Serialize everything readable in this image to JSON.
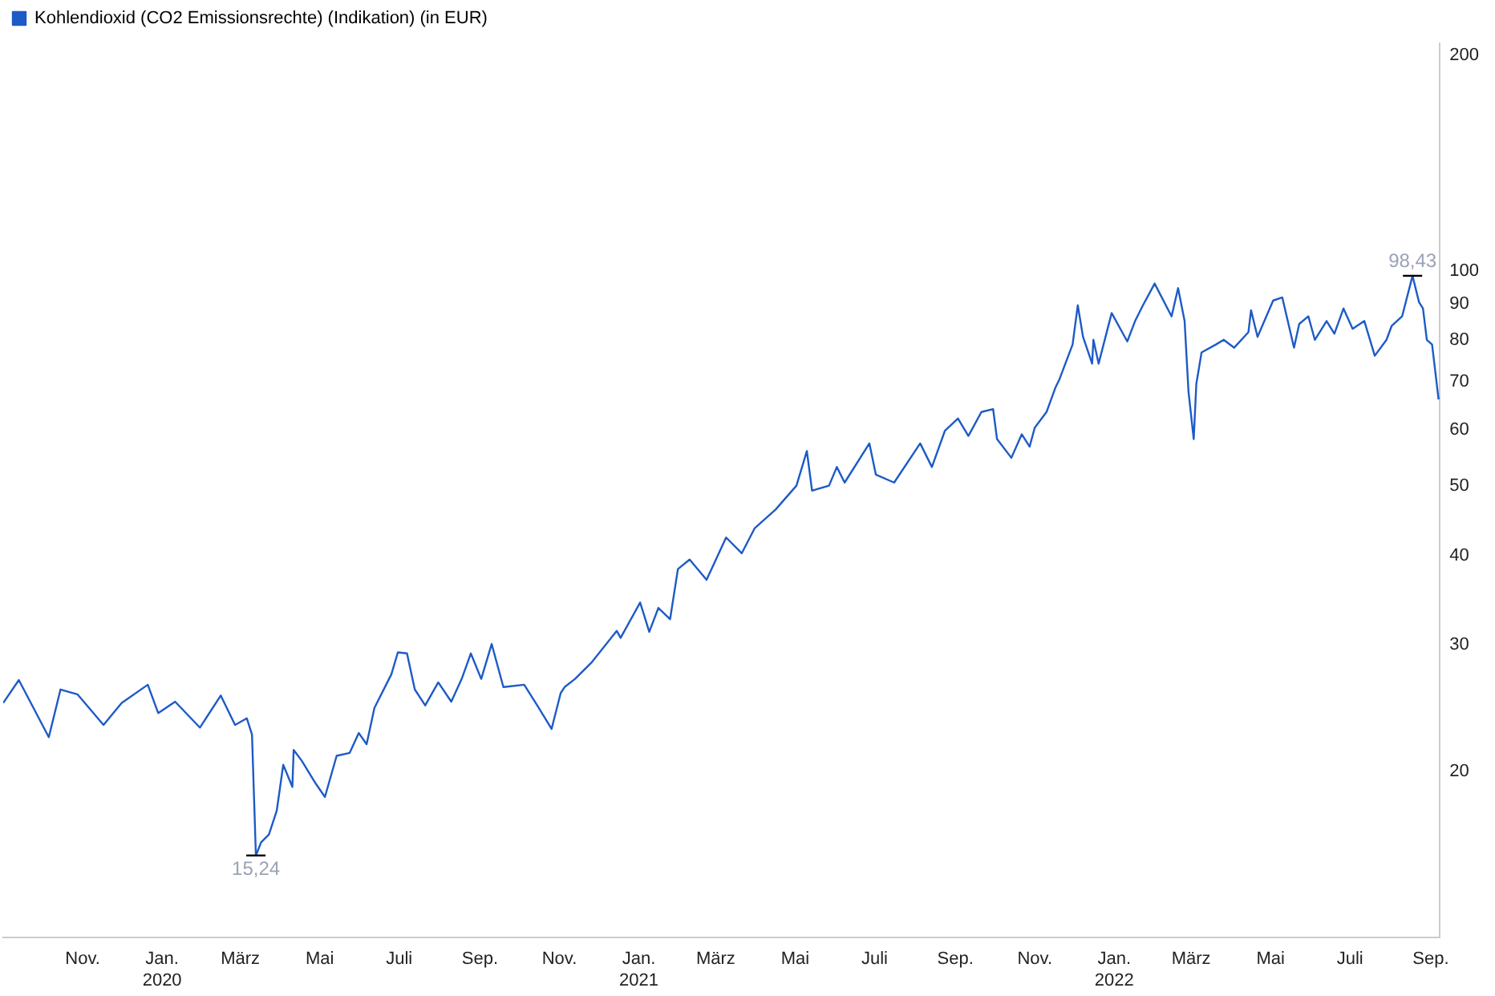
{
  "chart_data": {
    "type": "line",
    "log": "y",
    "legend": "top left",
    "grid": false,
    "marker": "none",
    "line_style": "solid",
    "xlim": [
      "2019-09-01",
      "2022-09-08"
    ],
    "ylim": [
      11.7,
      208
    ],
    "yticks": [
      20,
      30,
      40,
      50,
      60,
      70,
      80,
      90,
      100,
      200
    ],
    "xticks": [
      {
        "value": "2019-11",
        "label": "Nov."
      },
      {
        "value": "2020-01",
        "label": "Jan. 2020"
      },
      {
        "value": "2020-03",
        "label": "März"
      },
      {
        "value": "2020-05",
        "label": "Mai"
      },
      {
        "value": "2020-07",
        "label": "Juli"
      },
      {
        "value": "2020-09",
        "label": "Sep."
      },
      {
        "value": "2020-11",
        "label": "Nov."
      },
      {
        "value": "2021-01",
        "label": "Jan. 2021"
      },
      {
        "value": "2021-03",
        "label": "März"
      },
      {
        "value": "2021-05",
        "label": "Mai"
      },
      {
        "value": "2021-07",
        "label": "Juli"
      },
      {
        "value": "2021-09",
        "label": "Sep."
      },
      {
        "value": "2021-11",
        "label": "Nov."
      },
      {
        "value": "2022-01",
        "label": "Jan. 2022"
      },
      {
        "value": "2022-03",
        "label": "März"
      },
      {
        "value": "2022-05",
        "label": "Mai"
      },
      {
        "value": "2022-07",
        "label": "Juli"
      },
      {
        "value": "2022-09",
        "label": "Sep."
      }
    ],
    "x": [
      "2019-09-01",
      "2019-09-13",
      "2019-10-06",
      "2019-10-15",
      "2019-10-28",
      "2019-11-17",
      "2019-12-01",
      "2019-12-21",
      "2019-12-29",
      "2020-01-11",
      "2020-01-30",
      "2020-02-15",
      "2020-02-26",
      "2020-03-06",
      "2020-03-10",
      "2020-03-13",
      "2020-03-17",
      "2020-03-23",
      "2020-03-29",
      "2020-04-03",
      "2020-04-10",
      "2020-04-11",
      "2020-04-17",
      "2020-04-28",
      "2020-05-05",
      "2020-05-14",
      "2020-05-24",
      "2020-05-31",
      "2020-06-06",
      "2020-06-12",
      "2020-06-25",
      "2020-06-30",
      "2020-07-07",
      "2020-07-13",
      "2020-07-21",
      "2020-07-31",
      "2020-08-10",
      "2020-08-18",
      "2020-08-25",
      "2020-09-02",
      "2020-09-10",
      "2020-09-19",
      "2020-10-05",
      "2020-10-15",
      "2020-10-26",
      "2020-11-02",
      "2020-11-05",
      "2020-11-13",
      "2020-11-26",
      "2020-12-15",
      "2020-12-18",
      "2021-01-02",
      "2021-01-09",
      "2021-01-16",
      "2021-01-25",
      "2021-01-31",
      "2021-02-09",
      "2021-02-22",
      "2021-03-09",
      "2021-03-21",
      "2021-03-31",
      "2021-04-16",
      "2021-05-02",
      "2021-05-10",
      "2021-05-14",
      "2021-05-27",
      "2021-06-02",
      "2021-06-08",
      "2021-06-27",
      "2021-07-02",
      "2021-07-16",
      "2021-08-05",
      "2021-08-14",
      "2021-08-24",
      "2021-09-03",
      "2021-09-11",
      "2021-09-21",
      "2021-09-30",
      "2021-10-03",
      "2021-10-14",
      "2021-10-22",
      "2021-10-28",
      "2021-11-01",
      "2021-11-10",
      "2021-11-17",
      "2021-11-20",
      "2021-11-30",
      "2021-12-04",
      "2021-12-08",
      "2021-12-15",
      "2021-12-16",
      "2021-12-20",
      "2021-12-30",
      "2022-01-11",
      "2022-01-17",
      "2022-01-23",
      "2022-02-01",
      "2022-02-14",
      "2022-02-19",
      "2022-02-24",
      "2022-02-27",
      "2022-03-03",
      "2022-03-05",
      "2022-03-09",
      "2022-03-20",
      "2022-03-26",
      "2022-04-03",
      "2022-04-14",
      "2022-04-16",
      "2022-04-21",
      "2022-05-03",
      "2022-05-10",
      "2022-05-19",
      "2022-05-23",
      "2022-05-30",
      "2022-06-04",
      "2022-06-13",
      "2022-06-19",
      "2022-06-26",
      "2022-07-03",
      "2022-07-12",
      "2022-07-20",
      "2022-07-29",
      "2022-08-02",
      "2022-08-10",
      "2022-08-18",
      "2022-08-23",
      "2022-08-26",
      "2022-08-29",
      "2022-09-02",
      "2022-09-07"
    ],
    "series": [
      {
        "name": "Kohlendioxid (CO2 Emissionsrechte) (Indikation) (in EUR)",
        "color": "#1d5bc6",
        "values": [
          24.9,
          26.8,
          22.3,
          26.0,
          25.6,
          23.2,
          24.9,
          26.4,
          24.1,
          25.0,
          23.0,
          25.5,
          23.2,
          23.7,
          22.5,
          15.24,
          15.9,
          16.3,
          17.6,
          20.4,
          19.0,
          21.4,
          20.7,
          19.2,
          18.4,
          21.0,
          21.2,
          22.6,
          21.8,
          24.5,
          27.3,
          29.3,
          29.2,
          26.0,
          24.7,
          26.6,
          25.0,
          26.9,
          29.2,
          26.9,
          30.1,
          26.2,
          26.4,
          24.7,
          22.9,
          25.7,
          26.2,
          26.9,
          28.4,
          31.4,
          30.7,
          34.4,
          31.3,
          33.8,
          32.6,
          38.3,
          39.5,
          37.0,
          42.4,
          40.3,
          43.7,
          46.4,
          50.1,
          56.0,
          49.3,
          50.1,
          53.2,
          50.6,
          57.4,
          51.9,
          50.6,
          57.4,
          53.2,
          59.8,
          62.2,
          58.8,
          63.5,
          64.1,
          58.2,
          54.8,
          59.1,
          56.8,
          60.4,
          63.5,
          68.8,
          70.6,
          78.9,
          89.5,
          80.9,
          74.2,
          80.1,
          74.2,
          87.3,
          79.7,
          85.1,
          89.5,
          96.0,
          86.4,
          94.6,
          85.1,
          67.8,
          58.2,
          69.5,
          76.9,
          78.9,
          80.1,
          78.1,
          82.1,
          88.1,
          80.9,
          90.9,
          91.8,
          78.1,
          84.3,
          86.4,
          80.1,
          85.1,
          81.7,
          88.6,
          83.0,
          85.1,
          76.1,
          80.1,
          83.8,
          86.4,
          98.43,
          90.4,
          88.6,
          80.1,
          78.9,
          66.1
        ]
      }
    ],
    "annotations": [
      {
        "text": "15,24",
        "x": "2020-03-13",
        "y": 15.24
      },
      {
        "text": "98,43",
        "x": "2022-08-18",
        "y": 98.43
      }
    ]
  }
}
